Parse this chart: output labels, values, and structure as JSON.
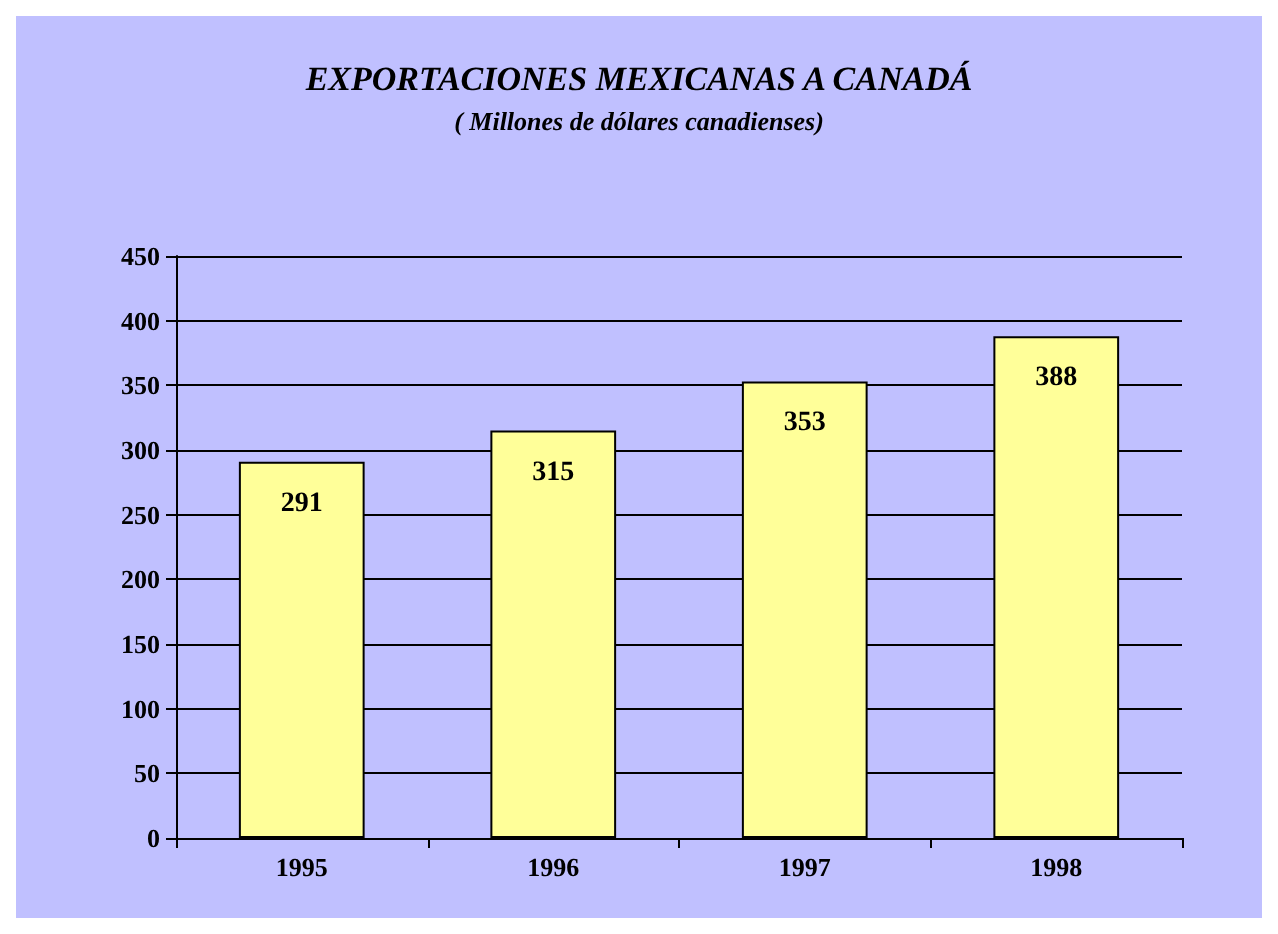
{
  "chart_data": {
    "type": "bar",
    "title": "EXPORTACIONES MEXICANAS A CANADÁ",
    "subtitle": "( Millones de dólares canadienses)",
    "categories": [
      "1995",
      "1996",
      "1997",
      "1998"
    ],
    "values": [
      291,
      315,
      353,
      388
    ],
    "color": "#ffff99",
    "ylim": [
      0,
      450
    ],
    "yticks": [
      0,
      50,
      100,
      150,
      200,
      250,
      300,
      350,
      400,
      450
    ],
    "grid": "y",
    "data_labels": true
  }
}
